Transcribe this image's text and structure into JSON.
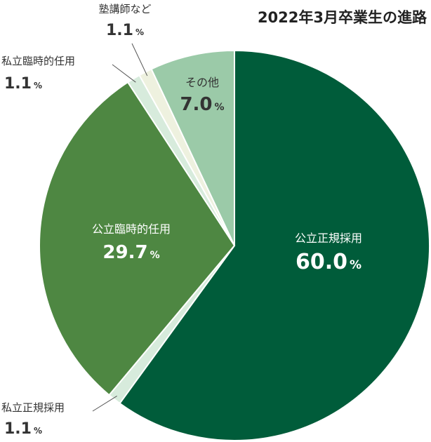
{
  "chart_data": {
    "type": "pie",
    "title": "2022年3月卒業生の進路",
    "slices": [
      {
        "label": "公立正規採用",
        "value": 60.0,
        "value_text": "60.0",
        "unit": "%",
        "color": "#005c3a"
      },
      {
        "label": "私立正規採用",
        "value": 1.1,
        "value_text": "1.1",
        "unit": "%",
        "color": "#d7ebdc"
      },
      {
        "label": "公立臨時的任用",
        "value": 29.7,
        "value_text": "29.7",
        "unit": "%",
        "color": "#4e8742"
      },
      {
        "label": "私立臨時的任用",
        "value": 1.1,
        "value_text": "1.1",
        "unit": "%",
        "color": "#d7ebdc"
      },
      {
        "label": "塾講師など",
        "value": 1.1,
        "value_text": "1.1",
        "unit": "%",
        "color": "#eef1df"
      },
      {
        "label": "その他",
        "value": 7.0,
        "value_text": "7.0",
        "unit": "%",
        "color": "#9bcaa8"
      }
    ]
  }
}
